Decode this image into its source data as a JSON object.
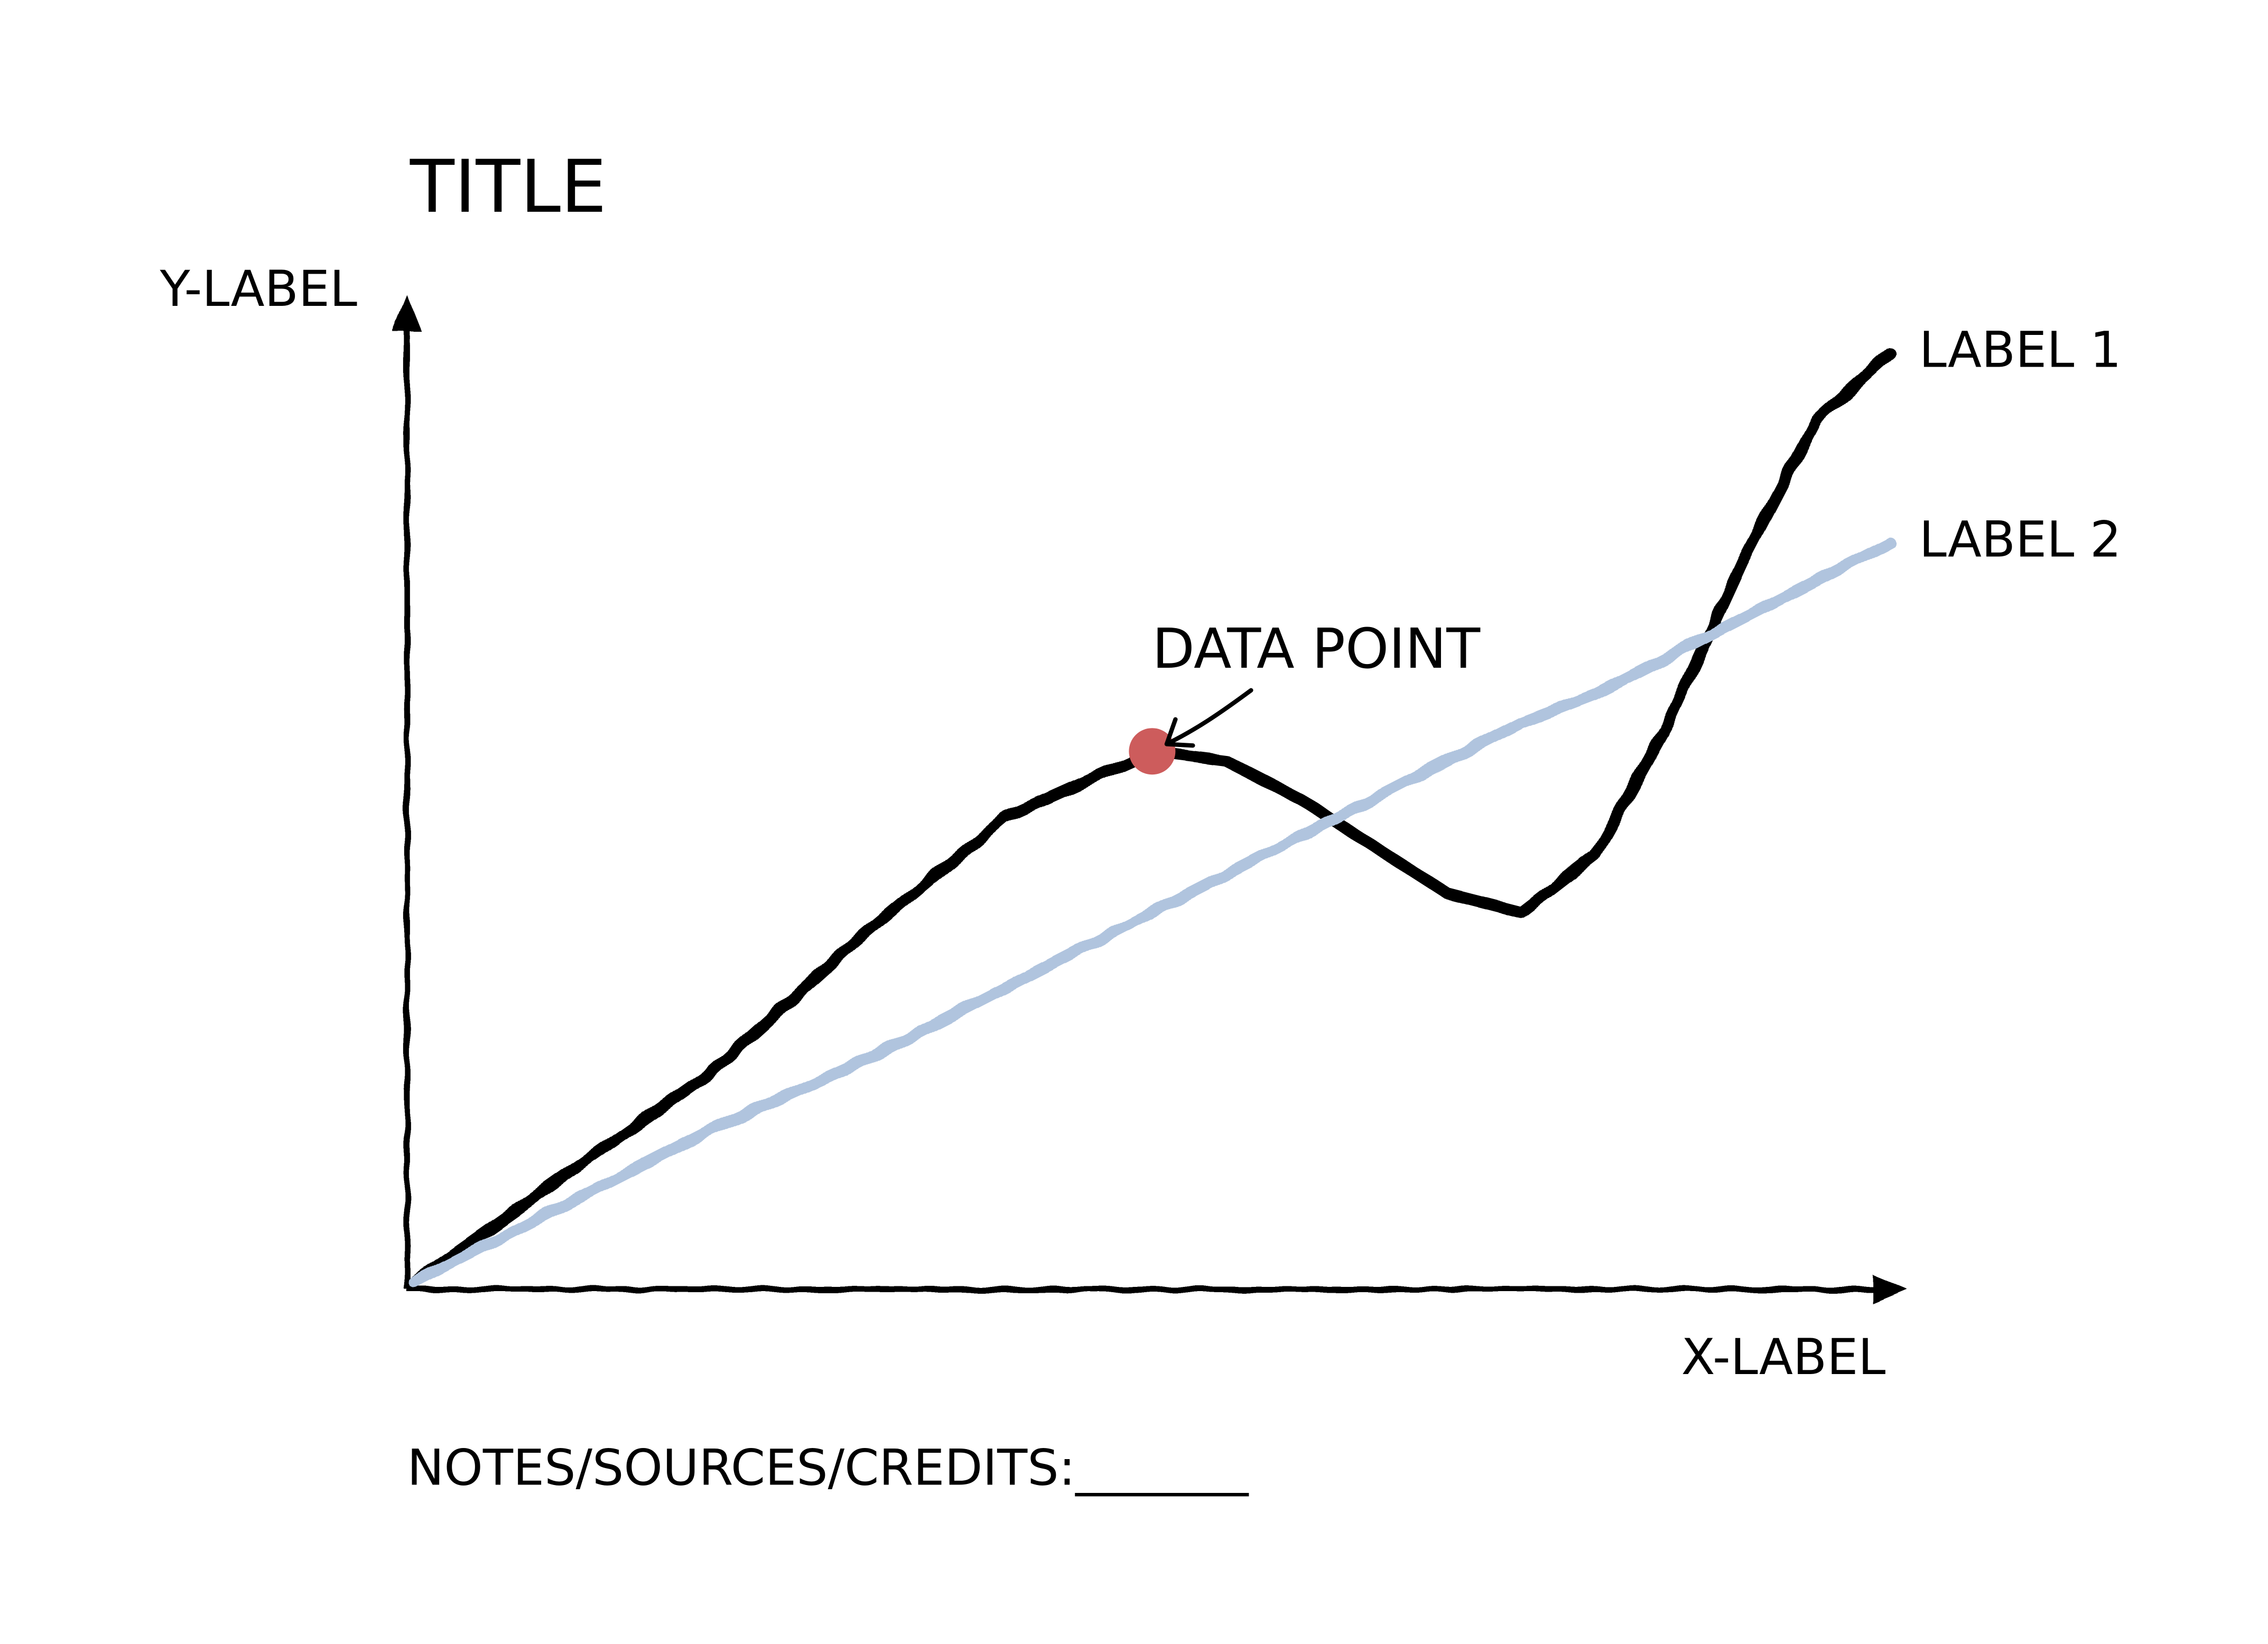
{
  "chart_data": {
    "type": "line",
    "title": "TITLE",
    "x_label": "X-LABEL",
    "y_label": "Y-LABEL",
    "notes": "NOTES/SOURCES/CREDITS:_______",
    "x": [
      0,
      1,
      2,
      3,
      4,
      5,
      5.5,
      6,
      6.5,
      7,
      7.5,
      8,
      8.5,
      9,
      9.5,
      10
    ],
    "series": [
      {
        "name": "LABEL 1",
        "color": "#000000",
        "values": [
          0,
          1.1,
          2.2,
          3.6,
          4.9,
          5.6,
          5.5,
          5.1,
          4.6,
          4.1,
          3.9,
          4.5,
          5.9,
          7.6,
          9.1,
          9.8
        ]
      },
      {
        "name": "LABEL 2",
        "color": "#b0c4de",
        "values": [
          0,
          0.8,
          1.6,
          2.3,
          3.1,
          3.9,
          4.3,
          4.7,
          5.1,
          5.5,
          5.9,
          6.2,
          6.6,
          7.0,
          7.4,
          7.8
        ]
      }
    ],
    "annotation": {
      "text": "DATA POINT",
      "x": 5,
      "y": 5.6,
      "color": "#cd5c5c"
    },
    "xlim": [
      0,
      10
    ],
    "ylim": [
      0,
      10
    ]
  }
}
